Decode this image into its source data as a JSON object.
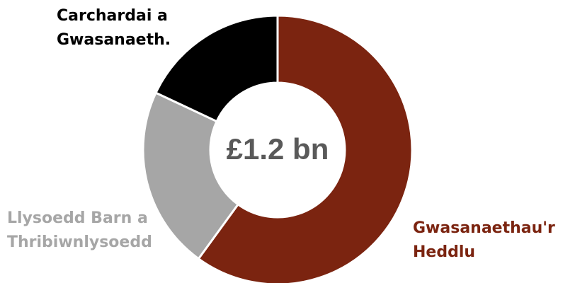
{
  "chart_data": {
    "type": "pie",
    "variant": "donut",
    "center_label": "£1.2 bn",
    "slices": [
      {
        "label_lines": [
          "Gwasanaethau'r",
          "Heddlu"
        ],
        "value": 60,
        "color": "#7b2410",
        "label_color": "#7b2410"
      },
      {
        "label_lines": [
          "Llysoedd Barn a",
          "Thribiwnlysoedd"
        ],
        "value": 22,
        "color": "#a6a6a6",
        "label_color": "#a6a6a6"
      },
      {
        "label_lines": [
          "Carchardai a",
          "Gwasanaeth."
        ],
        "value": 18,
        "color": "#000000",
        "label_color": "#000000"
      }
    ],
    "legend": "none"
  }
}
